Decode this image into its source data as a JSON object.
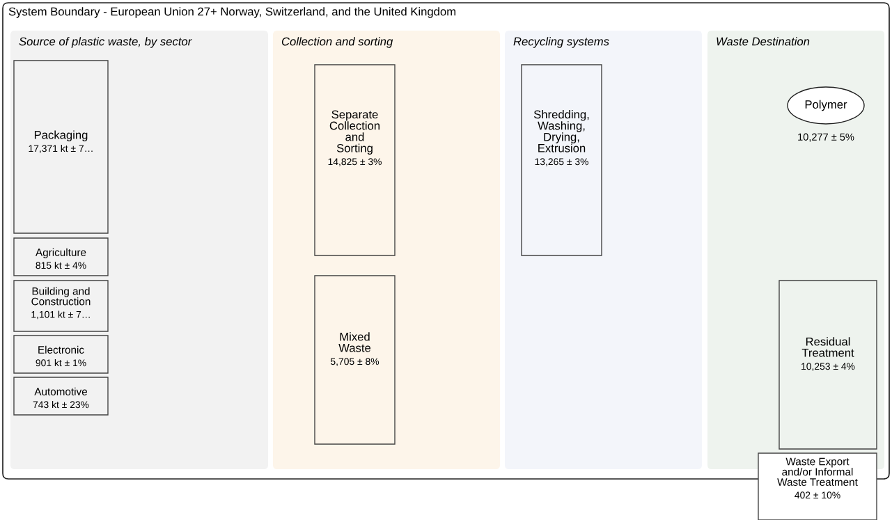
{
  "chart_data": {
    "type": "other",
    "title": "System Boundary - European Union 27+ Norway, Switzerland, and the United Kingdom",
    "annotations": [
      "Source of plastic waste, by sector",
      "Collection and sorting",
      "Recycling systems",
      "Waste Destination"
    ],
    "categories": [
      "Packaging",
      "Agriculture",
      "Building and\nConstruction",
      "Electronic",
      "Automotive",
      "Separate\nCollection\nand\nSorting",
      "Mixed\nWaste",
      "Shredding,\nWashing,\nDrying,\nExtrusion",
      "Polymer",
      "Residual\nTreatment",
      "Waste Export\nand/or Informal\nWaste Treatment"
    ],
    "values": [
      17371,
      815,
      1101,
      901,
      743,
      14825,
      5705,
      13265,
      10277,
      10253,
      402
    ],
    "value_labels": [
      "17,371 kt ± 7…",
      "815 kt ± 4%",
      "1,101 kt ± 7…",
      "901 kt ± 1%",
      "743 kt ± 23%",
      "14,825 ± 3%",
      "5,705 ± 8%",
      "13,265 ± 3%",
      "10,277 ± 5%",
      "10,253 ± 4%",
      "402 ± 10%"
    ]
  }
}
